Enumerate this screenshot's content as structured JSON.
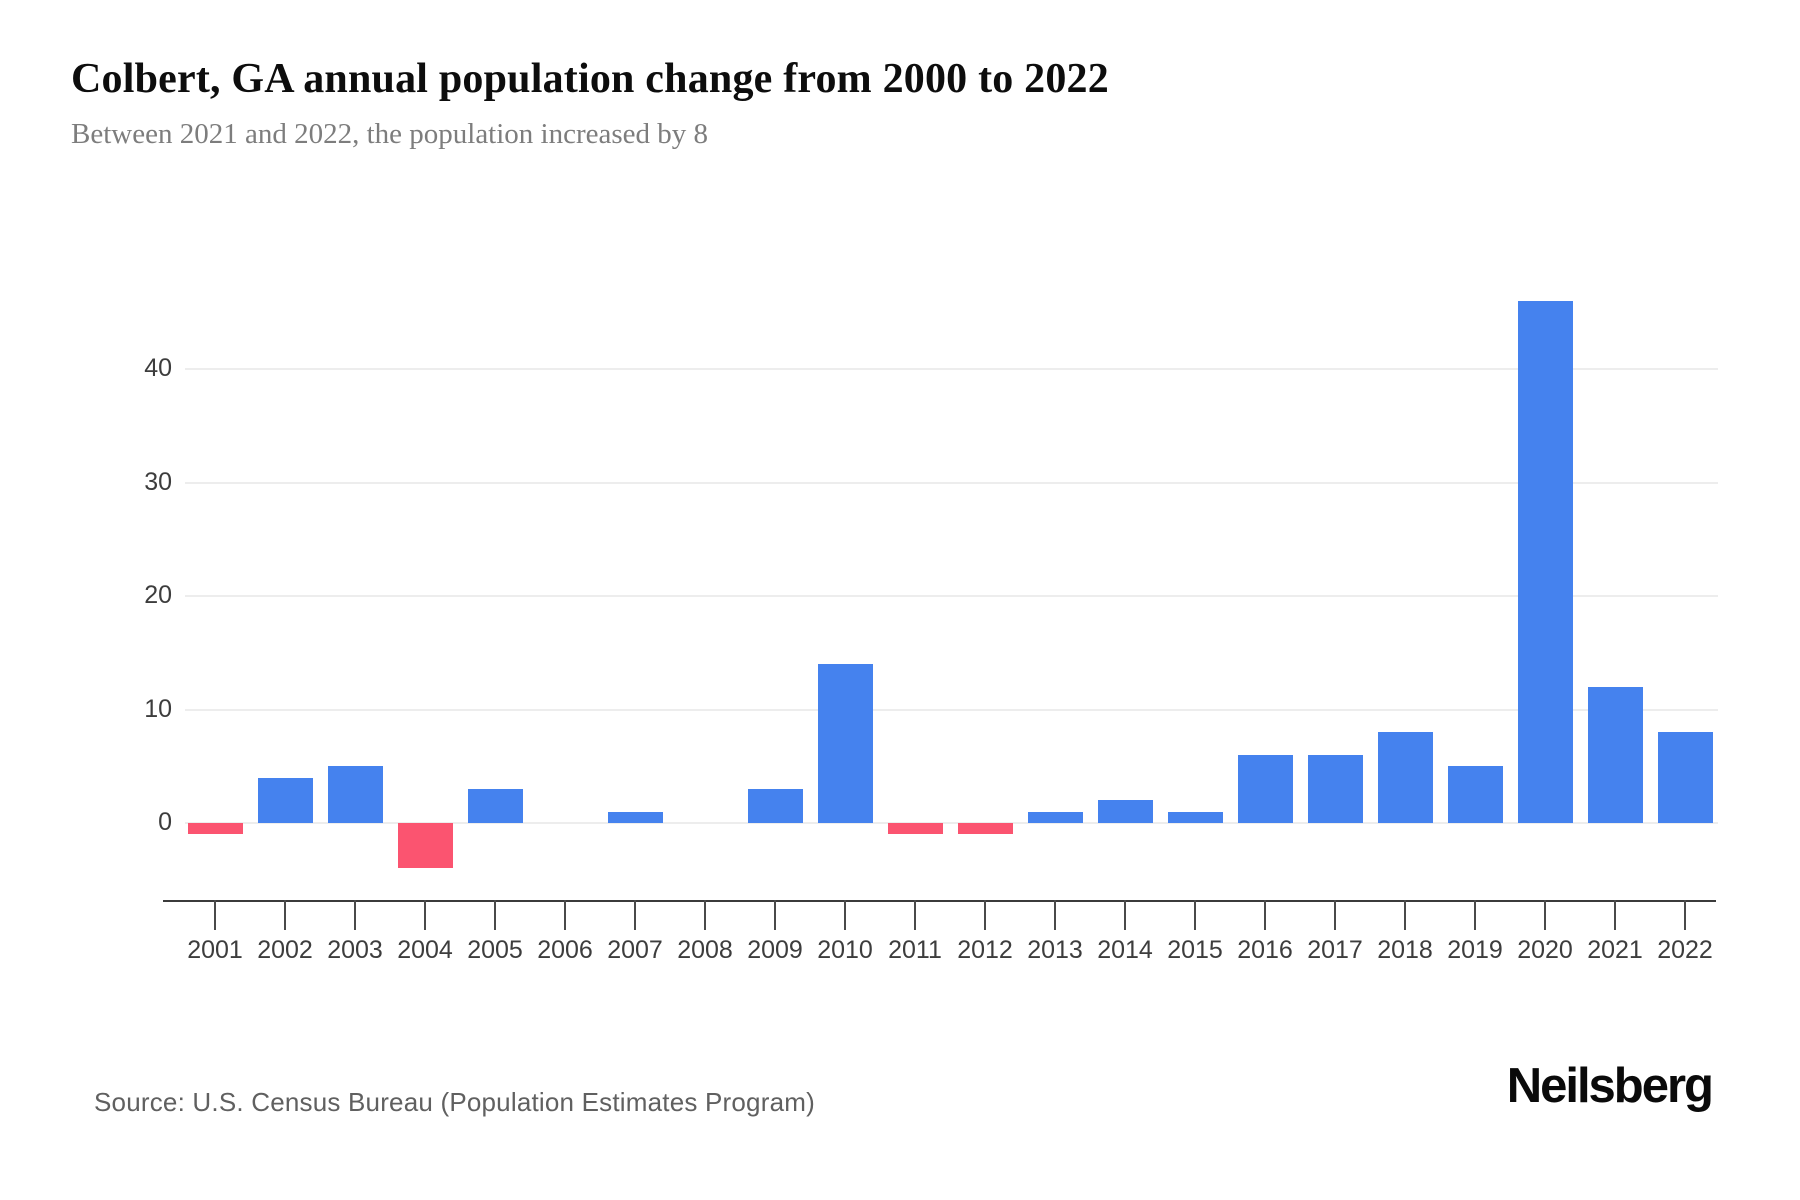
{
  "header": {
    "title": "Colbert, GA annual population change from 2000 to 2022",
    "subtitle": "Between 2021 and 2022, the population increased by 8"
  },
  "footer": {
    "source": "Source: U.S. Census Bureau (Population Estimates Program)",
    "brand": "Neilsberg"
  },
  "chart_data": {
    "type": "bar",
    "title": "Colbert, GA annual population change from 2000 to 2022",
    "subtitle": "Between 2021 and 2022, the population increased by 8",
    "xlabel": "",
    "ylabel": "",
    "categories": [
      "2001",
      "2002",
      "2003",
      "2004",
      "2005",
      "2006",
      "2007",
      "2008",
      "2009",
      "2010",
      "2011",
      "2012",
      "2013",
      "2014",
      "2015",
      "2016",
      "2017",
      "2018",
      "2019",
      "2020",
      "2021",
      "2022"
    ],
    "values": [
      -1,
      4,
      5,
      -4,
      3,
      0,
      1,
      0,
      3,
      14,
      -1,
      -1,
      1,
      2,
      1,
      6,
      6,
      8,
      5,
      46,
      12,
      8
    ],
    "yticks": [
      0,
      10,
      20,
      30,
      40
    ],
    "ylim": [
      -5,
      47
    ],
    "grid": true,
    "legend": false,
    "colors": {
      "positive_bar": "#4582ee",
      "negative_bar": "#fb5470",
      "gridline": "#ededed",
      "axis": "#3b3b3b",
      "tick_label": "#3d3d3d"
    }
  }
}
